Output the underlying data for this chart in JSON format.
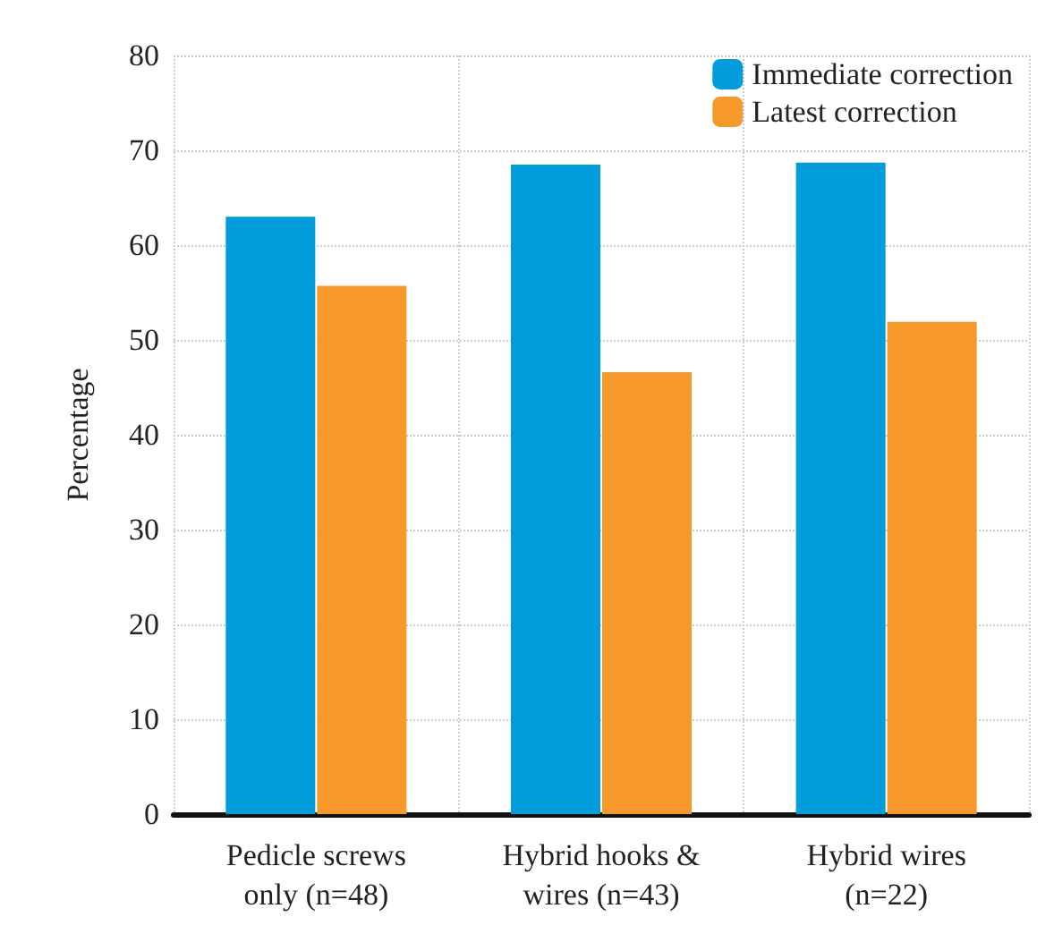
{
  "chart_data": {
    "type": "bar",
    "ylabel": "Percentage",
    "categories": [
      "Pedicle screws\nonly (n=48)",
      "Hybrid hooks &\nwires (n=43)",
      "Hybrid wires\n(n=22)"
    ],
    "series": [
      {
        "name": "Immediate correction",
        "color": "#009cdc",
        "values": [
          63,
          68.5,
          68.7
        ]
      },
      {
        "name": "Latest correction",
        "color": "#f7982a",
        "values": [
          55.7,
          46.6,
          51.9
        ]
      }
    ],
    "ylim": [
      0,
      80
    ],
    "yticks": [
      0,
      10,
      20,
      30,
      40,
      50,
      60,
      70,
      80
    ],
    "grid": true,
    "legend": "top right"
  }
}
